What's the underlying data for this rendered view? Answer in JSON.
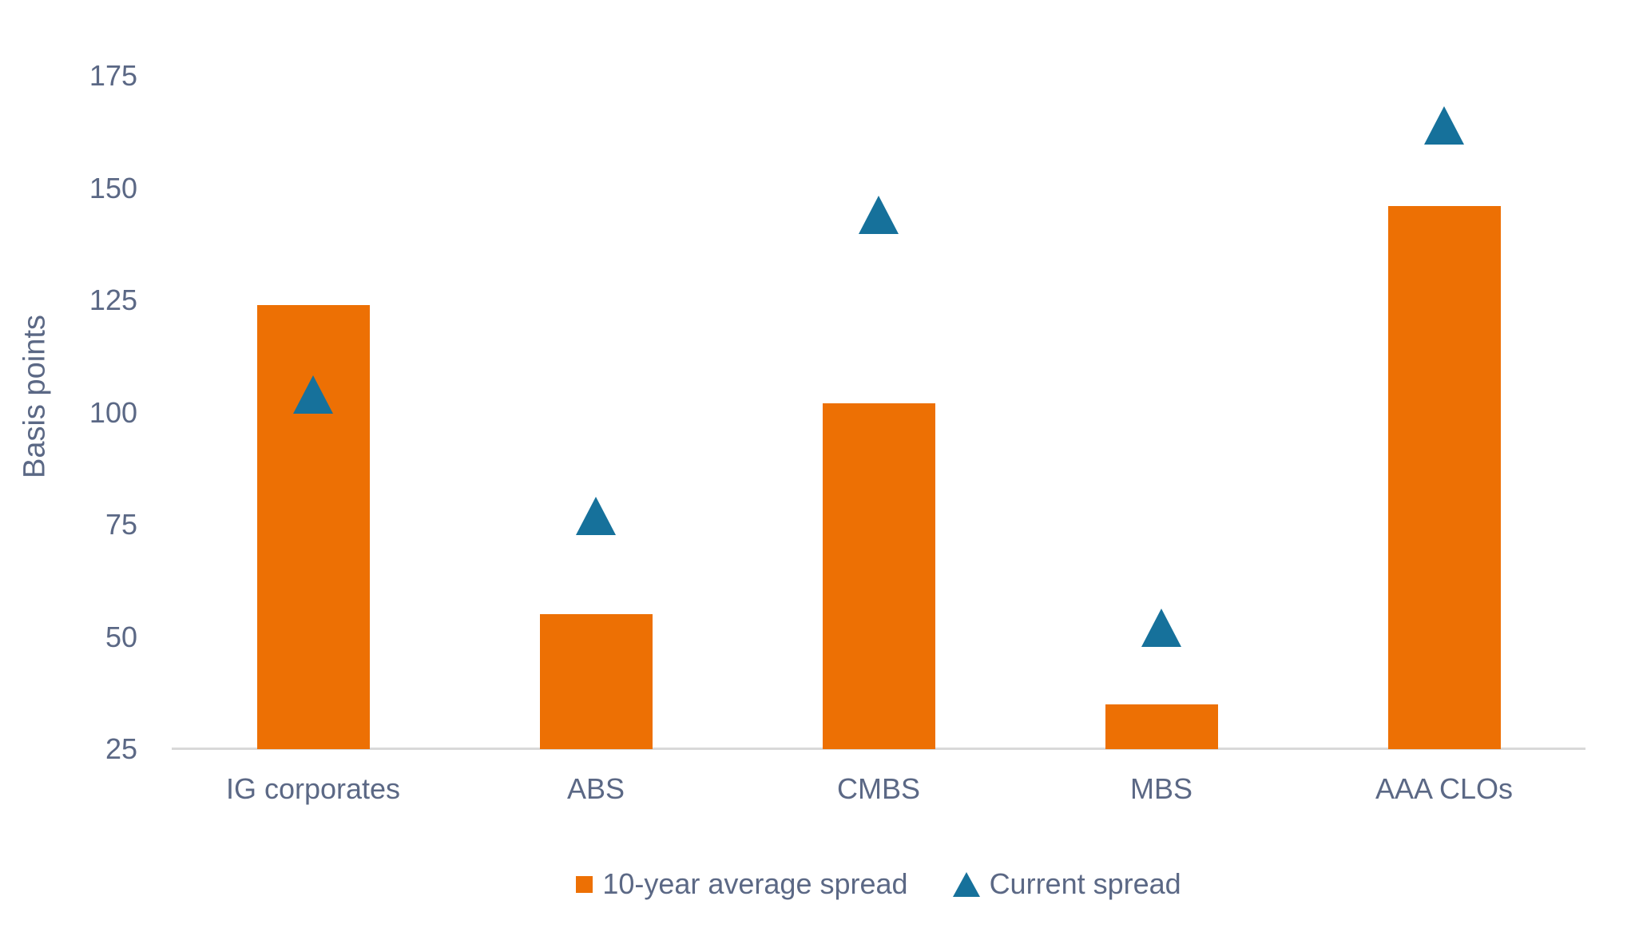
{
  "chart_data": {
    "type": "bar",
    "title": "",
    "ylabel": "Basis points",
    "xlabel": "",
    "categories": [
      "IG corporates",
      "ABS",
      "CMBS",
      "MBS",
      "AAA CLOs"
    ],
    "series": [
      {
        "name": "10-year average spread",
        "type": "bar",
        "color": "#ED7004",
        "values": [
          124,
          55,
          102,
          35,
          146
        ]
      },
      {
        "name": "Current spread",
        "type": "scatter",
        "marker": "triangle-up",
        "color": "#16719B",
        "values": [
          104,
          77,
          144,
          52,
          164
        ]
      }
    ],
    "ylim": [
      25,
      180
    ],
    "yticks": [
      25,
      50,
      75,
      100,
      125,
      150,
      175
    ],
    "grid": false,
    "legend_position": "bottom",
    "axis_line_color": "#D9D9D9",
    "text_color": "#5B6885",
    "background_color": "#FFFFFF"
  }
}
